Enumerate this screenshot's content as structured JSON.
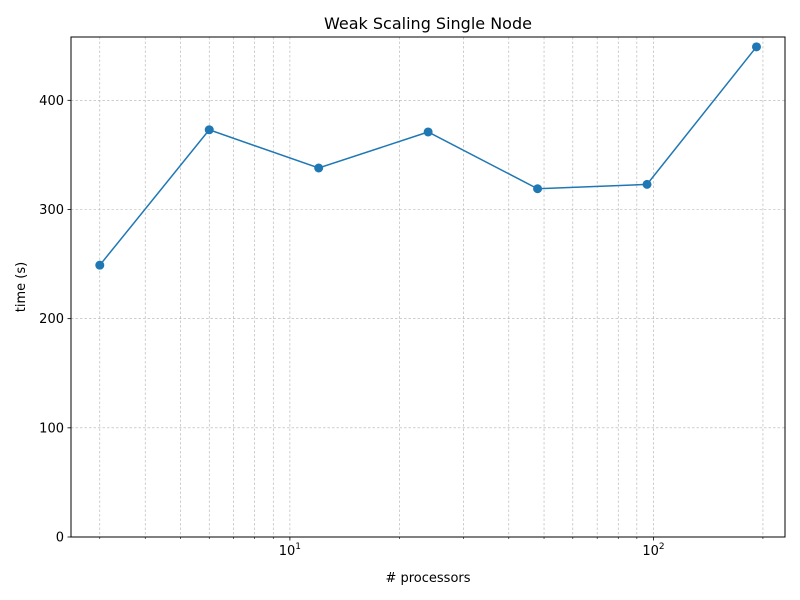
{
  "chart_data": {
    "type": "line",
    "title": "Weak Scaling Single Node",
    "xlabel": "# processors",
    "ylabel": "time (s)",
    "x_scale": "log",
    "xlim": [
      2.5,
      230
    ],
    "ylim": [
      0,
      458
    ],
    "grid": true,
    "color": "#1f77b4",
    "x_major_ticks": [
      {
        "value": 10,
        "base": "10",
        "exp": "1"
      },
      {
        "value": 100,
        "base": "10",
        "exp": "2"
      }
    ],
    "y_ticks": [
      0,
      100,
      200,
      300,
      400
    ],
    "series": [
      {
        "x": [
          3,
          6,
          12,
          24,
          48,
          96,
          192
        ],
        "y": [
          249,
          373,
          338,
          371,
          319,
          323,
          449
        ]
      }
    ]
  }
}
